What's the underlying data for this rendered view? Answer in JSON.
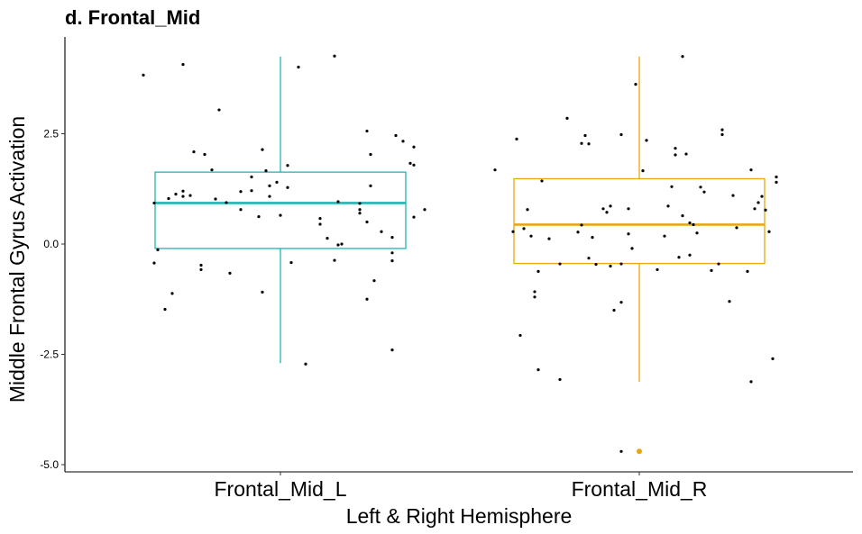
{
  "chart_data": {
    "type": "boxplot",
    "title": "d. Frontal_Mid",
    "xlabel": "Left & Right Hemisphere",
    "ylabel": "Middle Frontal Gyrus Activation",
    "ylim": [
      -5.2,
      4.6
    ],
    "yticks": [
      2.5,
      0.0,
      -2.5,
      -5.0
    ],
    "ytick_labels": [
      "2.5",
      "0.0",
      "-2.5",
      "-5.0"
    ],
    "grid": false,
    "legend": "none",
    "categories": [
      "Frontal_Mid_L",
      "Frontal_Mid_R"
    ],
    "boxes": [
      {
        "name": "Frontal_Mid_L",
        "color": "#1fb5b5",
        "whisker_low": -2.7,
        "q1": -0.1,
        "median": 0.93,
        "q3": 1.63,
        "whisker_high": 4.25,
        "outliers": []
      },
      {
        "name": "Frontal_Mid_R",
        "color": "#e8a712",
        "whisker_low": -3.12,
        "q1": -0.44,
        "median": 0.44,
        "q3": 1.48,
        "whisker_high": 4.25,
        "outliers": [
          -4.7
        ]
      }
    ],
    "jitter_points": [
      [
        [
          -0.38,
          3.83
        ],
        [
          -0.27,
          4.07
        ],
        [
          -0.17,
          3.04
        ],
        [
          0.05,
          4.01
        ],
        [
          0.15,
          4.26
        ],
        [
          -0.32,
          -1.48
        ],
        [
          -0.3,
          -1.12
        ],
        [
          -0.22,
          -0.48
        ],
        [
          -0.22,
          -0.58
        ],
        [
          -0.14,
          -0.66
        ],
        [
          -0.05,
          -1.09
        ],
        [
          -0.05,
          2.14
        ],
        [
          -0.08,
          1.52
        ],
        [
          0.02,
          1.78
        ],
        [
          0.02,
          1.28
        ],
        [
          -0.35,
          0.93
        ],
        [
          -0.34,
          -0.13
        ],
        [
          -0.35,
          -0.43
        ],
        [
          -0.31,
          1.03
        ],
        [
          -0.29,
          1.13
        ],
        [
          -0.27,
          1.08
        ],
        [
          -0.24,
          2.09
        ],
        [
          -0.21,
          2.03
        ],
        [
          -0.19,
          1.68
        ],
        [
          -0.18,
          1.02
        ],
        [
          -0.15,
          0.94
        ],
        [
          -0.11,
          0.78
        ],
        [
          -0.11,
          1.19
        ],
        [
          -0.08,
          1.21
        ],
        [
          -0.06,
          0.62
        ],
        [
          -0.04,
          1.66
        ],
        [
          -0.03,
          1.32
        ],
        [
          -0.03,
          1.08
        ],
        [
          -0.01,
          1.4
        ],
        [
          0.0,
          0.65
        ],
        [
          0.03,
          -0.42
        ],
        [
          0.07,
          -2.72
        ],
        [
          0.11,
          0.58
        ],
        [
          0.11,
          0.45
        ],
        [
          0.13,
          0.13
        ],
        [
          0.15,
          -0.37
        ],
        [
          0.16,
          0.96
        ],
        [
          0.16,
          -0.02
        ],
        [
          0.17,
          0.0
        ],
        [
          0.22,
          0.92
        ],
        [
          0.22,
          0.78
        ],
        [
          0.22,
          0.7
        ],
        [
          0.24,
          0.5
        ],
        [
          0.24,
          -1.25
        ],
        [
          0.24,
          2.56
        ],
        [
          0.25,
          2.03
        ],
        [
          0.25,
          1.32
        ],
        [
          0.26,
          -0.83
        ],
        [
          0.28,
          0.28
        ],
        [
          0.31,
          -0.2
        ],
        [
          0.31,
          -0.38
        ],
        [
          0.31,
          0.15
        ],
        [
          0.32,
          2.46
        ],
        [
          0.34,
          2.33
        ],
        [
          0.36,
          1.83
        ],
        [
          0.37,
          1.79
        ],
        [
          0.37,
          2.2
        ],
        [
          0.37,
          0.61
        ],
        [
          0.4,
          0.78
        ],
        [
          0.31,
          -2.4
        ],
        [
          -0.27,
          1.2
        ],
        [
          -0.25,
          1.1
        ]
      ],
      [
        [
          -0.4,
          1.68
        ],
        [
          -0.35,
          0.28
        ],
        [
          -0.34,
          2.38
        ],
        [
          -0.32,
          0.35
        ],
        [
          -0.31,
          0.78
        ],
        [
          -0.3,
          0.18
        ],
        [
          -0.29,
          -1.08
        ],
        [
          -0.29,
          -1.2
        ],
        [
          -0.28,
          -0.62
        ],
        [
          -0.27,
          1.43
        ],
        [
          -0.33,
          -2.07
        ],
        [
          -0.28,
          -2.85
        ],
        [
          -0.22,
          -3.07
        ],
        [
          -0.22,
          -0.45
        ],
        [
          -0.25,
          0.12
        ],
        [
          -0.2,
          2.85
        ],
        [
          -0.17,
          0.27
        ],
        [
          -0.16,
          2.28
        ],
        [
          -0.15,
          2.46
        ],
        [
          -0.14,
          2.27
        ],
        [
          -0.16,
          0.43
        ],
        [
          -0.14,
          -0.32
        ],
        [
          -0.12,
          -0.46
        ],
        [
          -0.13,
          0.15
        ],
        [
          -0.1,
          0.8
        ],
        [
          -0.08,
          0.86
        ],
        [
          -0.09,
          0.72
        ],
        [
          -0.08,
          -0.5
        ],
        [
          -0.07,
          -1.5
        ],
        [
          -0.05,
          -1.32
        ],
        [
          -0.05,
          -0.45
        ],
        [
          -0.03,
          0.23
        ],
        [
          -0.03,
          0.8
        ],
        [
          -0.02,
          -0.1
        ],
        [
          -0.01,
          3.62
        ],
        [
          -0.05,
          2.48
        ],
        [
          0.01,
          1.66
        ],
        [
          0.02,
          2.35
        ],
        [
          0.05,
          -0.58
        ],
        [
          0.07,
          0.18
        ],
        [
          0.08,
          0.86
        ],
        [
          0.09,
          1.3
        ],
        [
          0.1,
          2.17
        ],
        [
          0.1,
          2.02
        ],
        [
          0.11,
          -0.3
        ],
        [
          0.12,
          0.64
        ],
        [
          0.13,
          2.04
        ],
        [
          0.14,
          0.48
        ],
        [
          0.14,
          -0.25
        ],
        [
          0.15,
          0.44
        ],
        [
          0.16,
          0.25
        ],
        [
          0.17,
          1.29
        ],
        [
          0.18,
          1.18
        ],
        [
          0.2,
          -0.6
        ],
        [
          0.22,
          -0.45
        ],
        [
          0.23,
          2.59
        ],
        [
          0.23,
          2.48
        ],
        [
          0.25,
          -1.3
        ],
        [
          0.26,
          1.1
        ],
        [
          0.27,
          0.37
        ],
        [
          0.3,
          -0.62
        ],
        [
          0.31,
          1.68
        ],
        [
          0.32,
          0.8
        ],
        [
          0.33,
          0.94
        ],
        [
          0.34,
          1.08
        ],
        [
          0.35,
          0.77
        ],
        [
          0.37,
          -2.6
        ],
        [
          0.38,
          1.52
        ],
        [
          0.38,
          1.4
        ],
        [
          0.36,
          0.28
        ],
        [
          0.31,
          -3.12
        ],
        [
          -0.05,
          -4.7
        ],
        [
          0.12,
          4.25
        ]
      ]
    ]
  }
}
